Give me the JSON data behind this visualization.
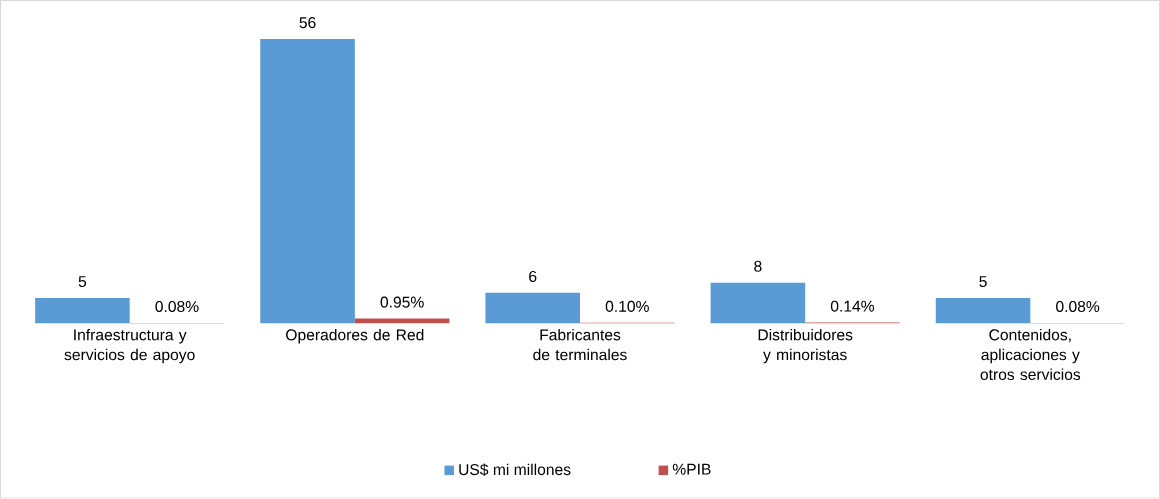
{
  "chart_data": {
    "type": "bar",
    "categories": [
      "Infraestructura y servicios de apoyo",
      "Operadores de Red",
      "Fabricantes de terminales",
      "Distribuidores y minoristas",
      "Contenidos, aplicaciones y otros servicios"
    ],
    "series": [
      {
        "name": "US$ mi millones",
        "color": "#5b9bd5",
        "values": [
          5,
          56,
          6,
          8,
          5
        ],
        "value_labels": [
          "5",
          "56",
          "6",
          "8",
          "5"
        ]
      },
      {
        "name": "%PIB",
        "color": "#c0504d",
        "values": [
          0.08,
          0.95,
          0.1,
          0.14,
          0.08
        ],
        "value_labels": [
          "0.08%",
          "0.95%",
          "0.10%",
          "0.14%",
          "0.08%"
        ]
      }
    ],
    "legend": "bottom"
  }
}
